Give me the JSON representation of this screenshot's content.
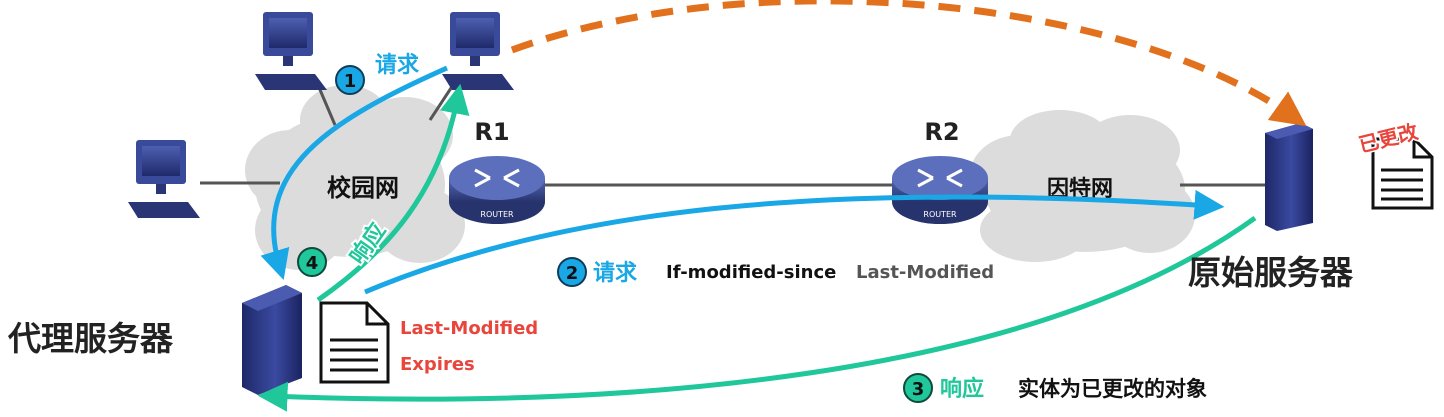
{
  "campus_net": {
    "label": "校园网"
  },
  "internet": {
    "label": "因特网"
  },
  "routers": {
    "r1": {
      "name": "R1",
      "device_label": "ROUTER"
    },
    "r2": {
      "name": "R2",
      "device_label": "ROUTER"
    }
  },
  "proxy_server": {
    "label": "代理服务器",
    "doc_fields": [
      "Last-Modified",
      "Expires"
    ]
  },
  "origin_server": {
    "label": "原始服务器",
    "changed_tag": "已更改"
  },
  "steps": [
    {
      "num": "1",
      "label": "请求",
      "detail": ""
    },
    {
      "num": "2",
      "label": "请求",
      "detail_a": "If-modified-since",
      "detail_b": "Last-Modified"
    },
    {
      "num": "3",
      "label": "响应",
      "detail": "实体为已更改的对象"
    },
    {
      "num": "4",
      "label": "响应",
      "detail": ""
    }
  ],
  "colors": {
    "request": "#1aa7e6",
    "response": "#1fc79a",
    "direct": "#e2711d",
    "highlight": "#e8453c",
    "router": "#3a4f92",
    "server": "#2b3578",
    "cloud": "#dcdcdc"
  }
}
